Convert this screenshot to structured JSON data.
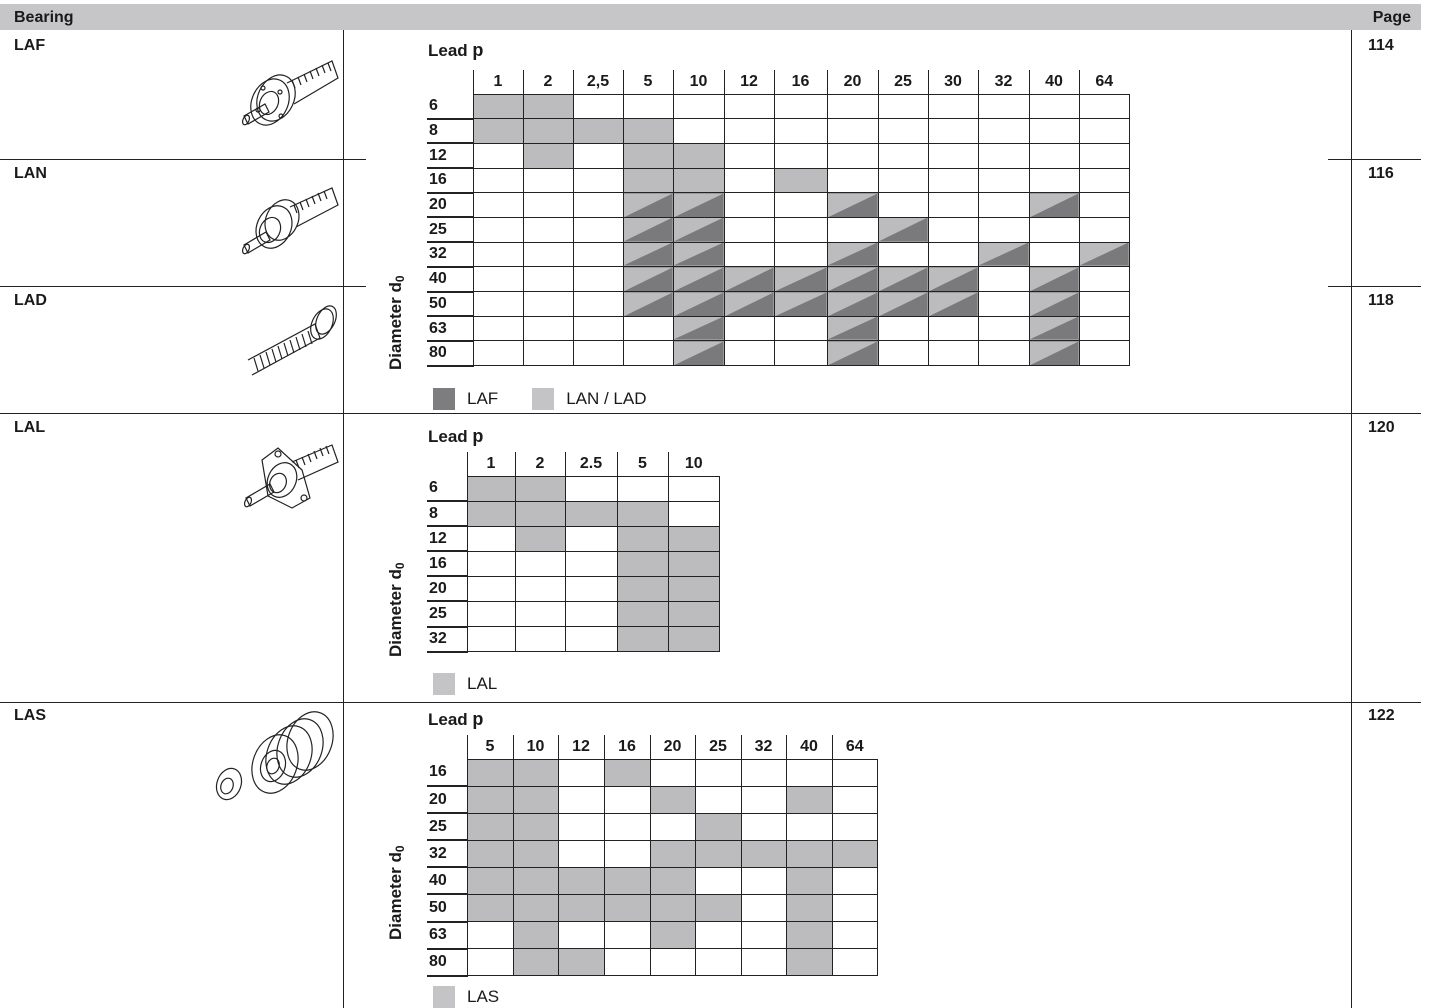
{
  "header": {
    "left": "Bearing",
    "right": "Page"
  },
  "bearings": [
    {
      "label": "LAF",
      "page": "114"
    },
    {
      "label": "LAN",
      "page": "116"
    },
    {
      "label": "LAD",
      "page": "118"
    },
    {
      "label": "LAL",
      "page": "120"
    },
    {
      "label": "LAS",
      "page": "122"
    }
  ],
  "tables": [
    {
      "lead_title": "Lead ",
      "lead_symbol": "p",
      "ylabel": "Diameter d",
      "ylabel_sub": "0",
      "columns": [
        "1",
        "2",
        "2,5",
        "5",
        "10",
        "12",
        "16",
        "20",
        "25",
        "30",
        "32",
        "40",
        "64"
      ],
      "rows": [
        {
          "d": "6",
          "cells": [
            "L",
            "L",
            "",
            "",
            "",
            "",
            "",
            "",
            "",
            "",
            "",
            "",
            ""
          ]
        },
        {
          "d": "8",
          "cells": [
            "L",
            "L",
            "L",
            "L",
            "",
            "",
            "",
            "",
            "",
            "",
            "",
            "",
            ""
          ]
        },
        {
          "d": "12",
          "cells": [
            "",
            "L",
            "",
            "L",
            "L",
            "",
            "",
            "",
            "",
            "",
            "",
            "",
            ""
          ]
        },
        {
          "d": "16",
          "cells": [
            "",
            "",
            "",
            "L",
            "L",
            "",
            "L",
            "",
            "",
            "",
            "",
            "",
            ""
          ]
        },
        {
          "d": "20",
          "cells": [
            "",
            "",
            "",
            "B",
            "B",
            "",
            "",
            "B",
            "",
            "",
            "",
            "B",
            ""
          ]
        },
        {
          "d": "25",
          "cells": [
            "",
            "",
            "",
            "B",
            "B",
            "",
            "",
            "",
            "B",
            "",
            "",
            "",
            ""
          ]
        },
        {
          "d": "32",
          "cells": [
            "",
            "",
            "",
            "B",
            "B",
            "",
            "",
            "B",
            "",
            "",
            "B",
            "",
            "B"
          ]
        },
        {
          "d": "40",
          "cells": [
            "",
            "",
            "",
            "B",
            "B",
            "B",
            "B",
            "B",
            "B",
            "B",
            "",
            "B",
            ""
          ]
        },
        {
          "d": "50",
          "cells": [
            "",
            "",
            "",
            "B",
            "B",
            "B",
            "B",
            "B",
            "B",
            "B",
            "",
            "B",
            ""
          ]
        },
        {
          "d": "63",
          "cells": [
            "",
            "",
            "",
            "",
            "B",
            "",
            "",
            "B",
            "",
            "",
            "",
            "B",
            ""
          ]
        },
        {
          "d": "80",
          "cells": [
            "",
            "",
            "",
            "",
            "B",
            "",
            "",
            "B",
            "",
            "",
            "",
            "B",
            ""
          ]
        }
      ],
      "legend": [
        {
          "swatch": "dark",
          "label": "LAF"
        },
        {
          "swatch": "light",
          "label": "LAN / LAD"
        }
      ]
    },
    {
      "lead_title": "Lead ",
      "lead_symbol": "p",
      "ylabel": "Diameter d",
      "ylabel_sub": "0",
      "columns": [
        "1",
        "2",
        "2.5",
        "5",
        "10"
      ],
      "rows": [
        {
          "d": "6",
          "cells": [
            "L",
            "L",
            "",
            "",
            ""
          ]
        },
        {
          "d": "8",
          "cells": [
            "L",
            "L",
            "L",
            "L",
            ""
          ]
        },
        {
          "d": "12",
          "cells": [
            "",
            "L",
            "",
            "L",
            "L"
          ]
        },
        {
          "d": "16",
          "cells": [
            "",
            "",
            "",
            "L",
            "L"
          ]
        },
        {
          "d": "20",
          "cells": [
            "",
            "",
            "",
            "L",
            "L"
          ]
        },
        {
          "d": "25",
          "cells": [
            "",
            "",
            "",
            "L",
            "L"
          ]
        },
        {
          "d": "32",
          "cells": [
            "",
            "",
            "",
            "L",
            "L"
          ]
        }
      ],
      "legend": [
        {
          "swatch": "light",
          "label": "LAL"
        }
      ]
    },
    {
      "lead_title": "Lead ",
      "lead_symbol": "p",
      "ylabel": "Diameter d",
      "ylabel_sub": "0",
      "columns": [
        "5",
        "10",
        "12",
        "16",
        "20",
        "25",
        "32",
        "40",
        "64"
      ],
      "rows": [
        {
          "d": "16",
          "cells": [
            "L",
            "L",
            "",
            "L",
            "",
            "",
            "",
            "",
            ""
          ]
        },
        {
          "d": "20",
          "cells": [
            "L",
            "L",
            "",
            "",
            "L",
            "",
            "",
            "L",
            ""
          ]
        },
        {
          "d": "25",
          "cells": [
            "L",
            "L",
            "",
            "",
            "",
            "L",
            "",
            "",
            ""
          ]
        },
        {
          "d": "32",
          "cells": [
            "L",
            "L",
            "",
            "",
            "L",
            "L",
            "L",
            "L",
            "L"
          ]
        },
        {
          "d": "40",
          "cells": [
            "L",
            "L",
            "L",
            "L",
            "L",
            "",
            "",
            "L",
            ""
          ]
        },
        {
          "d": "50",
          "cells": [
            "L",
            "L",
            "L",
            "L",
            "L",
            "L",
            "",
            "L",
            ""
          ]
        },
        {
          "d": "63",
          "cells": [
            "",
            "L",
            "",
            "",
            "L",
            "",
            "",
            "L",
            ""
          ]
        },
        {
          "d": "80",
          "cells": [
            "",
            "L",
            "L",
            "",
            "",
            "",
            "",
            "L",
            ""
          ]
        }
      ],
      "legend": [
        {
          "swatch": "light",
          "label": "LAS"
        }
      ]
    }
  ],
  "colors": {
    "light": "#bcbcbe",
    "dark": "#7a7a7c",
    "header": "#c6c6c8"
  }
}
